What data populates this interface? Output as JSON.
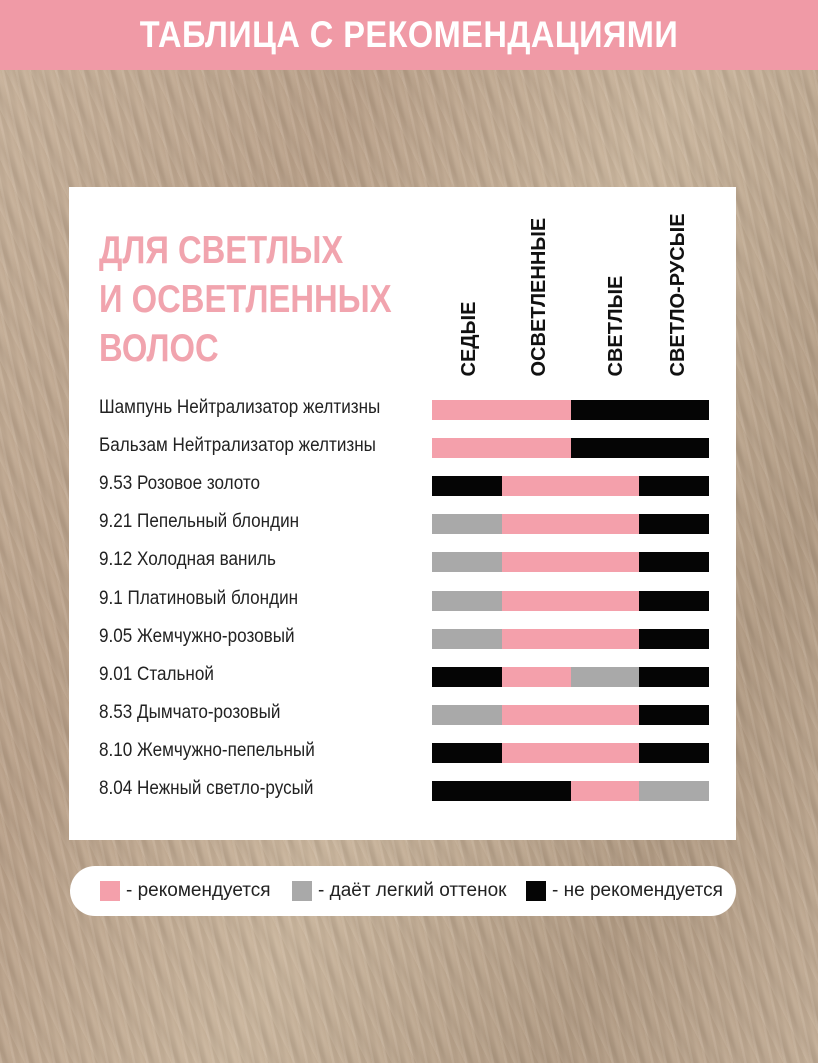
{
  "banner": {
    "title": "ТАБЛИЦА С РЕКОМЕНДАЦИЯМИ"
  },
  "heading": {
    "line1": "ДЛЯ СВЕТЛЫХ",
    "line2": "И ОСВЕТЛЕННЫХ",
    "line3": "ВОЛОС"
  },
  "columns": [
    "СЕДЫЕ",
    "ОСВЕТЛЕННЫЕ",
    "СВЕТЛЫЕ",
    "СВЕТЛО-РУСЫЕ"
  ],
  "colors": {
    "recommended": "#f4a0ab",
    "light_tint": "#a9a9a9",
    "not_recommended": "#050505",
    "accent": "#f09aa6"
  },
  "legend": {
    "recommended": "- рекомендуется",
    "light_tint": "- даёт легкий оттенок",
    "not_recommended": "- не рекомендуется"
  },
  "rows": [
    {
      "label": "Шампунь Нейтрализатор желтизны",
      "values": [
        "recommended",
        "recommended",
        "not_recommended",
        "not_recommended"
      ]
    },
    {
      "label": "Бальзам Нейтрализатор желтизны",
      "values": [
        "recommended",
        "recommended",
        "not_recommended",
        "not_recommended"
      ]
    },
    {
      "label": "9.53 Розовое золото",
      "values": [
        "not_recommended",
        "recommended",
        "recommended",
        "not_recommended"
      ]
    },
    {
      "label": "9.21 Пепельный блондин",
      "values": [
        "light_tint",
        "recommended",
        "recommended",
        "not_recommended"
      ]
    },
    {
      "label": "9.12 Холодная ваниль",
      "values": [
        "light_tint",
        "recommended",
        "recommended",
        "not_recommended"
      ]
    },
    {
      "label": "9.1 Платиновый блондин",
      "values": [
        "light_tint",
        "recommended",
        "recommended",
        "not_recommended"
      ]
    },
    {
      "label": "9.05 Жемчужно-розовый",
      "values": [
        "light_tint",
        "recommended",
        "recommended",
        "not_recommended"
      ]
    },
    {
      "label": "9.01 Стальной",
      "values": [
        "not_recommended",
        "recommended",
        "light_tint",
        "not_recommended"
      ]
    },
    {
      "label": "8.53 Дымчато-розовый",
      "values": [
        "light_tint",
        "recommended",
        "recommended",
        "not_recommended"
      ]
    },
    {
      "label": "8.10 Жемчужно-пепельный",
      "values": [
        "not_recommended",
        "recommended",
        "recommended",
        "not_recommended"
      ]
    },
    {
      "label": "8.04 Нежный светло-русый",
      "values": [
        "not_recommended",
        "not_recommended",
        "recommended",
        "light_tint"
      ]
    }
  ]
}
